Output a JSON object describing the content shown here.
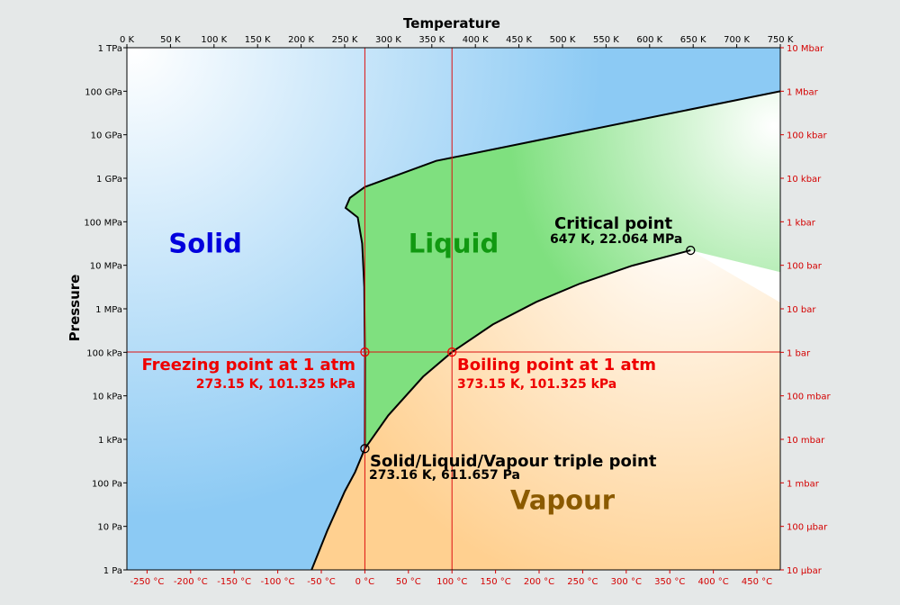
{
  "chart_data": {
    "type": "area",
    "title": "",
    "xlabel": "Temperature",
    "ylabel": "Pressure",
    "xlim_K": [
      0,
      750
    ],
    "ylim_Pa_log10": [
      0,
      12
    ],
    "y_scale": "log",
    "top_ticks": [
      "0 K",
      "50 K",
      "100 K",
      "150 K",
      "200 K",
      "250 K",
      "300 K",
      "350 K",
      "400 K",
      "450 K",
      "500 K",
      "550 K",
      "600 K",
      "650 K",
      "700 K",
      "750 K"
    ],
    "top_tick_values_K": [
      0,
      50,
      100,
      150,
      200,
      250,
      300,
      350,
      400,
      450,
      500,
      550,
      600,
      650,
      700,
      750
    ],
    "bottom_ticks": [
      "-250 °C",
      "-200 °C",
      "-150 °C",
      "-100 °C",
      "-50 °C",
      "0 °C",
      "50 °C",
      "100 °C",
      "150 °C",
      "200 °C",
      "250 °C",
      "300 °C",
      "350 °C",
      "400 °C",
      "450 °C"
    ],
    "bottom_tick_values_C": [
      -250,
      -200,
      -150,
      -100,
      -50,
      0,
      50,
      100,
      150,
      200,
      250,
      300,
      350,
      400,
      450
    ],
    "left_ticks": [
      "1 Pa",
      "10 Pa",
      "100 Pa",
      "1 kPa",
      "10 kPa",
      "100 kPa",
      "1 MPa",
      "10 MPa",
      "100 MPa",
      "1 GPa",
      "10 GPa",
      "100 GPa",
      "1 TPa"
    ],
    "right_ticks": [
      "10 µbar",
      "100 µbar",
      "1 mbar",
      "10 mbar",
      "100 mbar",
      "1 bar",
      "10 bar",
      "100 bar",
      "1 kbar",
      "10 kbar",
      "100 kbar",
      "1 Mbar",
      "10 Mbar"
    ],
    "regions": [
      {
        "name": "Solid",
        "label_at": [
          90,
          7.5
        ],
        "color": "#0000dd"
      },
      {
        "name": "Liquid",
        "label_at": [
          375,
          7.5
        ],
        "color": "#119911"
      },
      {
        "name": "Vapour",
        "label_at": [
          500,
          1.6
        ],
        "color": "#8b5a00"
      }
    ],
    "melting_curve": [
      [
        273.16,
        2.787
      ],
      [
        273.3,
        5.0
      ],
      [
        273.15,
        5.0057
      ],
      [
        272.5,
        6.5
      ],
      [
        270.0,
        7.5
      ],
      [
        265.0,
        8.1
      ],
      [
        251.0,
        8.32
      ],
      [
        256.0,
        8.55
      ],
      [
        273.15,
        8.8
      ],
      [
        355.0,
        9.4
      ],
      [
        750.0,
        11.0
      ]
    ],
    "vaporization_curve": [
      [
        273.16,
        2.787
      ],
      [
        300,
        3.55
      ],
      [
        340,
        4.44
      ],
      [
        373.15,
        5.0057
      ],
      [
        420,
        5.64
      ],
      [
        470,
        6.16
      ],
      [
        520,
        6.58
      ],
      [
        580,
        6.99
      ],
      [
        647.0,
        7.344
      ]
    ],
    "sublimation_curve": [
      [
        212.0,
        0.0
      ],
      [
        230,
        0.9
      ],
      [
        250,
        1.8
      ],
      [
        262,
        2.25
      ],
      [
        273.16,
        2.787
      ]
    ],
    "reference_lines": {
      "vertical_K": [
        273.15,
        373.15
      ],
      "horizontal_Pa_log10": [
        5.0057
      ]
    },
    "points": [
      {
        "name": "Critical point",
        "T": 647.0,
        "P_log10": 7.344,
        "label": "Critical point",
        "sublabel": "647 K, 22.064 MPa",
        "color": "#000000"
      },
      {
        "name": "Freezing point",
        "T": 273.15,
        "P_log10": 5.0057,
        "label": "Freezing point at 1 atm",
        "sublabel": "273.15 K, 101.325 kPa",
        "color": "#ee0000"
      },
      {
        "name": "Boiling point",
        "T": 373.15,
        "P_log10": 5.0057,
        "label": "Boiling point at 1 atm",
        "sublabel": "373.15 K, 101.325 kPa",
        "color": "#ee0000"
      },
      {
        "name": "Triple point",
        "T": 273.16,
        "P_log10": 2.787,
        "label": "Solid/Liquid/Vapour triple point",
        "sublabel": "273.16 K, 611.657 Pa",
        "color": "#000000"
      }
    ],
    "colors": {
      "solid": "#a8d8f8",
      "liquid": "#7fe07f",
      "vapour": "#ffd090",
      "reference": "#dd1111",
      "celsius": "#d40000",
      "bar": "#d40000"
    }
  }
}
